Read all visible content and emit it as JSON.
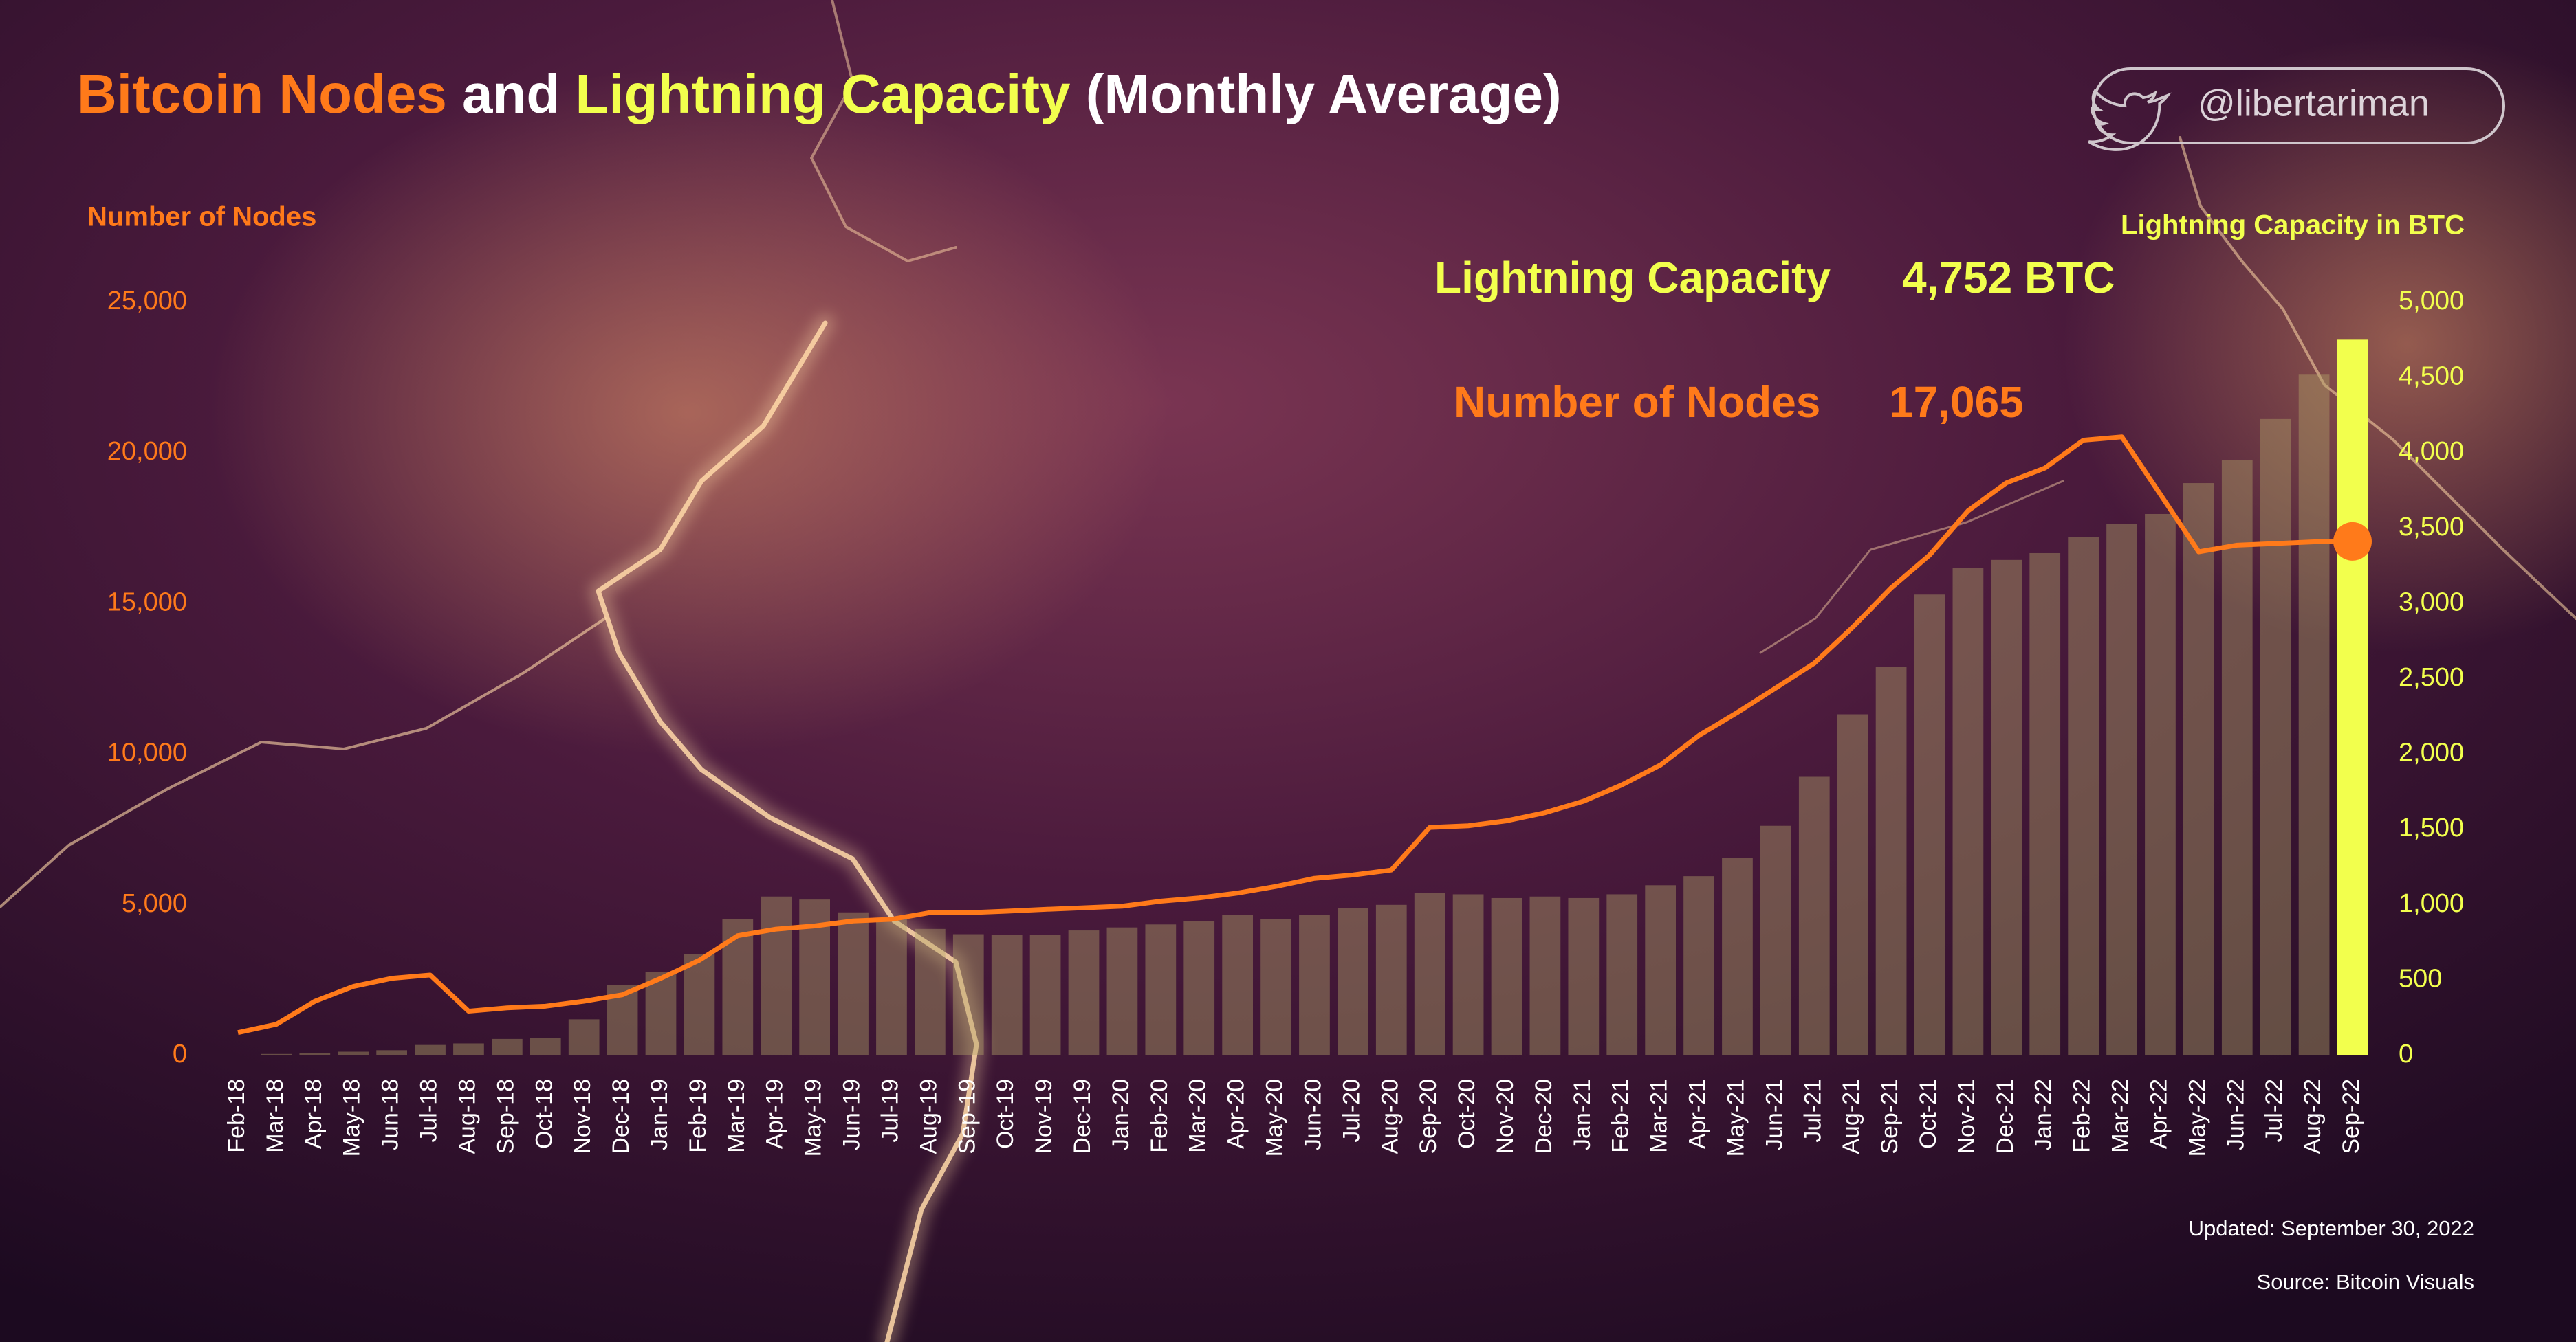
{
  "chart_data": {
    "type": "bar-line",
    "title": [
      "Bitcoin Nodes",
      "and",
      "Lightning Capacity",
      "(Monthly Average)"
    ],
    "handle": "@libertariman",
    "ylabel": "Number of Nodes",
    "y2label": "Lightning Capacity in BTC",
    "annotations": [
      {
        "text": "Lightning Capacity",
        "value_text": "4,752 BTC"
      },
      {
        "text": "Number of Nodes",
        "value_text": "17,065"
      }
    ],
    "footer": [
      "Updated: September 30, 2022",
      "Source: Bitcoin Visuals"
    ],
    "categories": [
      "Feb-18",
      "Mar-18",
      "Apr-18",
      "May-18",
      "Jun-18",
      "Jul-18",
      "Aug-18",
      "Sep-18",
      "Oct-18",
      "Nov-18",
      "Dec-18",
      "Jan-19",
      "Feb-19",
      "Mar-19",
      "Apr-19",
      "May-19",
      "Jun-19",
      "Jul-19",
      "Aug-19",
      "Sep-19",
      "Oct-19",
      "Nov-19",
      "Dec-19",
      "Jan-20",
      "Feb-20",
      "Mar-20",
      "Apr-20",
      "May-20",
      "Jun-20",
      "Jul-20",
      "Aug-20",
      "Sep-20",
      "Oct-20",
      "Nov-20",
      "Dec-20",
      "Jan-21",
      "Feb-21",
      "Mar-21",
      "Apr-21",
      "May-21",
      "Jun-21",
      "Jul-21",
      "Aug-21",
      "Sep-21",
      "Oct-21",
      "Nov-21",
      "Dec-21",
      "Jan-22",
      "Feb-22",
      "Mar-22",
      "Apr-22",
      "May-22",
      "Jun-22",
      "Jul-22",
      "Aug-22",
      "Sep-22"
    ],
    "series": [
      {
        "name": "Lightning Capacity",
        "type": "bar",
        "axis": "y2",
        "color": "#f2ff4d",
        "values": [
          2,
          10,
          15,
          25,
          35,
          70,
          80,
          110,
          115,
          240,
          470,
          555,
          675,
          905,
          1055,
          1035,
          950,
          905,
          840,
          805,
          800,
          800,
          830,
          850,
          870,
          890,
          935,
          905,
          935,
          980,
          1000,
          1080,
          1070,
          1045,
          1055,
          1045,
          1070,
          1130,
          1190,
          1310,
          1525,
          1850,
          2265,
          2580,
          3060,
          3235,
          3290,
          3335,
          3440,
          3530,
          3595,
          3800,
          3955,
          4225,
          4520,
          4752
        ]
      },
      {
        "name": "Number of Nodes",
        "type": "line",
        "color": "#ff7a1a",
        "values": [
          760,
          1035,
          1800,
          2290,
          2560,
          2670,
          1470,
          1580,
          1635,
          1800,
          2015,
          2560,
          3160,
          3975,
          4195,
          4300,
          4465,
          4520,
          4740,
          4740,
          4790,
          4850,
          4900,
          4955,
          5120,
          5230,
          5390,
          5610,
          5880,
          5990,
          6155,
          7570,
          7625,
          7790,
          8060,
          8440,
          8985,
          9640,
          10620,
          11385,
          12200,
          13020,
          14215,
          15520,
          16610,
          18080,
          19010,
          19500,
          20425,
          20535,
          18630,
          16720,
          16940,
          16995,
          17050,
          17065
        ]
      }
    ],
    "ylim": [
      0,
      25000
    ],
    "yticks": [
      0,
      {
        "value": 5000,
        "label": "5,000"
      },
      {
        "value": 10000,
        "label": "10,000"
      },
      {
        "value": 15000,
        "label": "15,000"
      },
      {
        "value": 20000,
        "label": "20,000"
      },
      {
        "value": 25000,
        "label": "25,000"
      }
    ],
    "y2lim": [
      0,
      5000
    ],
    "y2ticks": [
      0,
      500,
      {
        "value": 1000,
        "label": "1,000"
      },
      {
        "value": 1500,
        "label": "1,500"
      },
      {
        "value": 2000,
        "label": "2,000"
      },
      {
        "value": 2500,
        "label": "2,500"
      },
      {
        "value": 3000,
        "label": "3,000"
      },
      {
        "value": 3500,
        "label": "3,500"
      },
      {
        "value": 4000,
        "label": "4,000"
      },
      {
        "value": 4500,
        "label": "4,500"
      },
      {
        "value": 5000,
        "label": "5,000"
      }
    ],
    "grid": false
  }
}
